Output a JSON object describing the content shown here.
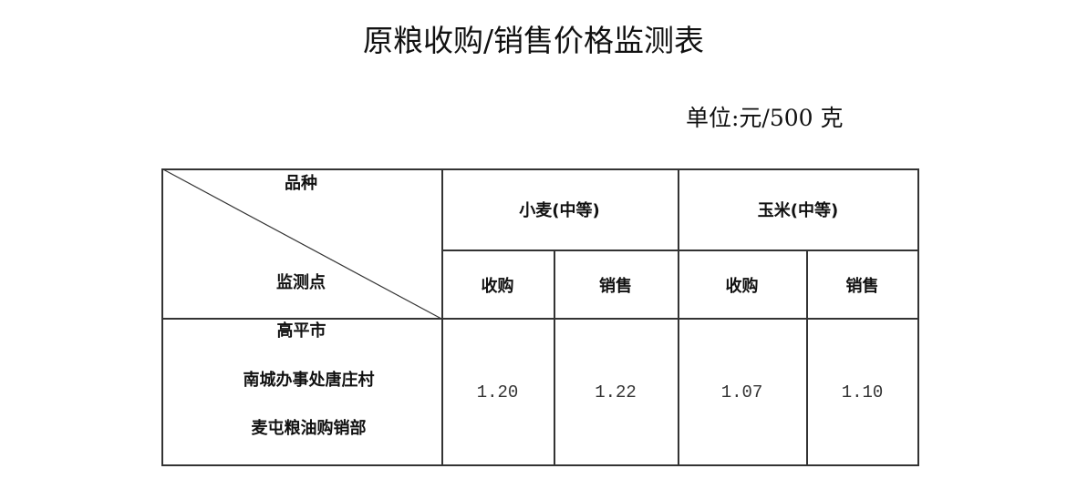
{
  "title": "原粮收购/销售价格监测表",
  "unit": "单位:元/500 克",
  "table": {
    "corner_top": "品种",
    "corner_bottom": "监测点",
    "groups": [
      "小麦(中等)",
      "玉米(中等)"
    ],
    "subheaders": [
      "收购",
      "销售",
      "收购",
      "销售"
    ],
    "rows": [
      {
        "location": [
          "高平市",
          "南城办事处唐庄村",
          "麦屯粮油购销部"
        ],
        "values": [
          "1.20",
          "1.22",
          "1.07",
          "1.10"
        ]
      }
    ]
  }
}
